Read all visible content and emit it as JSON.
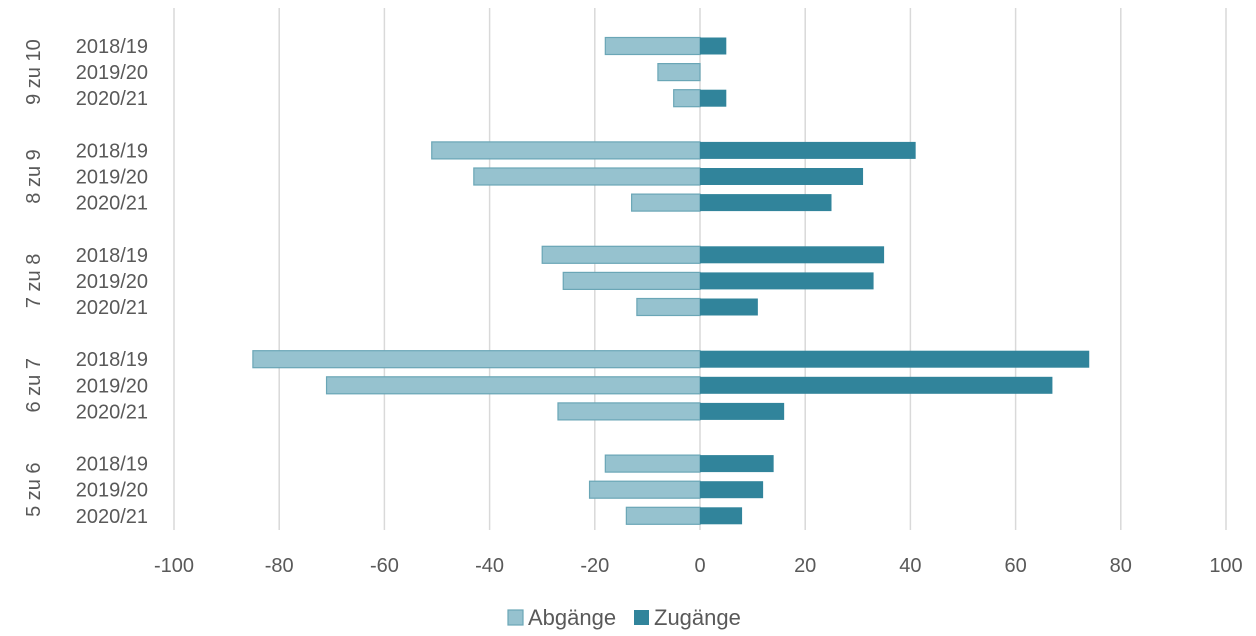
{
  "chart_data": {
    "type": "bar",
    "orientation": "horizontal",
    "xlim": [
      -100,
      100
    ],
    "x_ticks": [
      "-100",
      "-80",
      "-60",
      "-40",
      "-20",
      "0",
      "20",
      "40",
      "60",
      "80",
      "100"
    ],
    "grid": "vertical",
    "legend_position": "bottom",
    "groups": [
      {
        "label": "9 zu 10",
        "categories": [
          "2018/19",
          "2019/20",
          "2020/21"
        ]
      },
      {
        "label": "8 zu 9",
        "categories": [
          "2018/19",
          "2019/20",
          "2020/21"
        ]
      },
      {
        "label": "7 zu 8",
        "categories": [
          "2018/19",
          "2019/20",
          "2020/21"
        ]
      },
      {
        "label": "6 zu 7",
        "categories": [
          "2018/19",
          "2019/20",
          "2020/21"
        ]
      },
      {
        "label": "5 zu 6",
        "categories": [
          "2018/19",
          "2019/20",
          "2020/21"
        ]
      }
    ],
    "series": [
      {
        "name": "Abgänge",
        "color": "#96C2CF",
        "values": [
          [
            -18,
            -8,
            -5
          ],
          [
            -51,
            -43,
            -13
          ],
          [
            -30,
            -26,
            -12
          ],
          [
            -85,
            -71,
            -27
          ],
          [
            -18,
            -21,
            -14
          ]
        ]
      },
      {
        "name": "Zugänge",
        "color": "#31849B",
        "values": [
          [
            5,
            0,
            5
          ],
          [
            41,
            31,
            25
          ],
          [
            35,
            33,
            11
          ],
          [
            74,
            67,
            16
          ],
          [
            14,
            12,
            8
          ]
        ]
      }
    ]
  }
}
